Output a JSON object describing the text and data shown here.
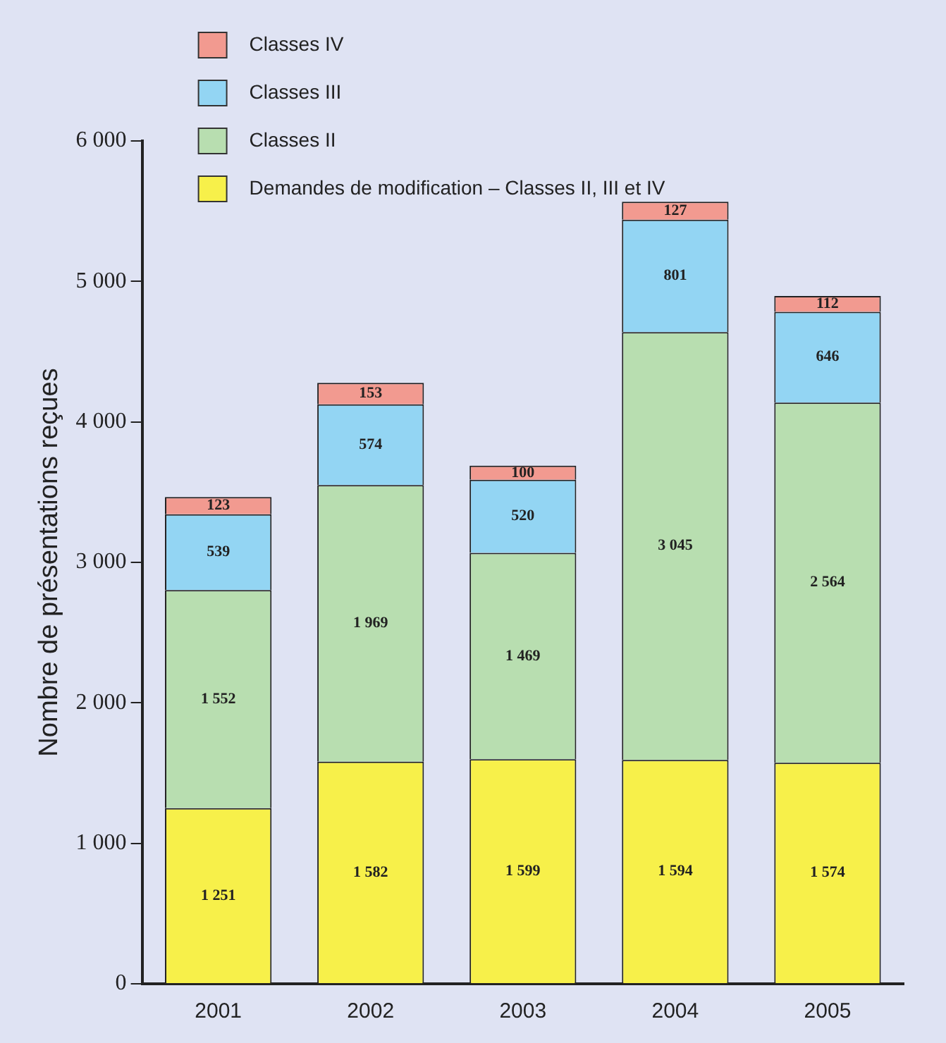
{
  "chart_data": {
    "type": "bar",
    "stacked": true,
    "ylabel": "Nombre de présentations reçues",
    "categories": [
      "2001",
      "2002",
      "2003",
      "2004",
      "2005"
    ],
    "ylim": [
      0,
      6000
    ],
    "yticks": [
      {
        "value": 0,
        "label": "0"
      },
      {
        "value": 1000,
        "label": "1 000"
      },
      {
        "value": 2000,
        "label": "2 000"
      },
      {
        "value": 3000,
        "label": "3 000"
      },
      {
        "value": 4000,
        "label": "4 000"
      },
      {
        "value": 5000,
        "label": "5 000"
      },
      {
        "value": 6000,
        "label": "6 000"
      }
    ],
    "grid": false,
    "legend": "top left",
    "series": [
      {
        "name": "Demandes de modification – Classes II, III et IV",
        "color": "#f7f04a",
        "values": [
          1251,
          1582,
          1599,
          1594,
          1574
        ],
        "value_labels": [
          "1 251",
          "1 582",
          "1 599",
          "1 594",
          "1 574"
        ]
      },
      {
        "name": "Classes II",
        "color": "#b8deb0",
        "values": [
          1552,
          1969,
          1469,
          3045,
          2564
        ],
        "value_labels": [
          "1 552",
          "1 969",
          "1 469",
          "3 045",
          "2 564"
        ]
      },
      {
        "name": "Classes III",
        "color": "#93d5f3",
        "values": [
          539,
          574,
          520,
          801,
          646
        ],
        "value_labels": [
          "539",
          "574",
          "520",
          "801",
          "646"
        ]
      },
      {
        "name": "Classes IV",
        "color": "#f29a90",
        "values": [
          123,
          153,
          100,
          127,
          112
        ],
        "value_labels": [
          "123",
          "153",
          "100",
          "127",
          "112"
        ]
      }
    ]
  }
}
